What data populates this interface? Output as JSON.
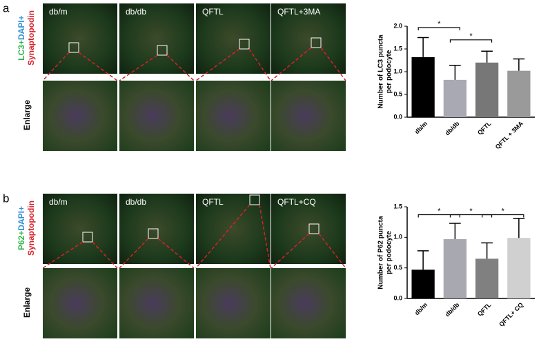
{
  "panels": [
    {
      "label": "a",
      "stain": [
        "LC3+",
        "DAPI+",
        "Synaptopodin"
      ],
      "images": [
        "db/m",
        "db/db",
        "QFTL",
        "QFTL+3MA"
      ],
      "enlarge": "Enlarge"
    },
    {
      "label": "b",
      "stain": [
        "P62+",
        "DAPI+",
        "Synaptopodin"
      ],
      "images": [
        "db/m",
        "db/db",
        "QFTL",
        "QFTL+CQ"
      ],
      "enlarge": "Enlarge"
    }
  ],
  "chart_data": [
    {
      "type": "bar",
      "ylabel": [
        "Number of LC3 puncta",
        "per podocyte"
      ],
      "categories": [
        "db/m",
        "db/db",
        "QFTL",
        "QFTL + 3MA"
      ],
      "values": [
        1.32,
        0.82,
        1.2,
        1.02
      ],
      "errors": [
        0.43,
        0.32,
        0.25,
        0.26
      ],
      "colors": [
        "#000000",
        "#a9a9b3",
        "#777777",
        "#9a9a9a"
      ],
      "ylim": [
        0,
        2
      ],
      "yticks": [
        {
          "value": 0,
          "label": "0.0"
        },
        {
          "value": 0.5,
          "label": "0.5"
        },
        {
          "value": 1,
          "label": "1.0"
        },
        {
          "value": 1.5,
          "label": "1.5"
        },
        {
          "value": 2,
          "label": "2.0"
        }
      ],
      "annotations": [
        {
          "text": "*",
          "between": [
            "db/m",
            "db/db"
          ],
          "y": 1.97
        },
        {
          "text": "*",
          "between": [
            "db/db",
            "QFTL"
          ],
          "y": 1.7
        }
      ]
    },
    {
      "type": "bar",
      "ylabel": [
        "Number of P62 puncta",
        "per podocyte"
      ],
      "categories": [
        "db/m",
        "db/db",
        "QFTL",
        "QFTL+ CQ"
      ],
      "values": [
        0.47,
        0.97,
        0.65,
        0.99
      ],
      "errors": [
        0.31,
        0.26,
        0.26,
        0.32
      ],
      "colors": [
        "#000000",
        "#a8a8b0",
        "#808080",
        "#d0d0d0"
      ],
      "ylim": [
        0,
        1.5
      ],
      "yticks": [
        {
          "value": 0,
          "label": "0.0"
        },
        {
          "value": 0.5,
          "label": "0.5"
        },
        {
          "value": 1,
          "label": "1.0"
        },
        {
          "value": 1.5,
          "label": "1.5"
        }
      ],
      "annotations": [
        {
          "text": "*",
          "between": [
            "db/m",
            "db/db"
          ],
          "y": 1.37
        },
        {
          "text": "*",
          "between": [
            "db/db",
            "QFTL"
          ],
          "y": 1.37
        },
        {
          "text": "*",
          "between": [
            "QFTL",
            "QFTL+ CQ"
          ],
          "y": 1.37
        }
      ]
    }
  ]
}
